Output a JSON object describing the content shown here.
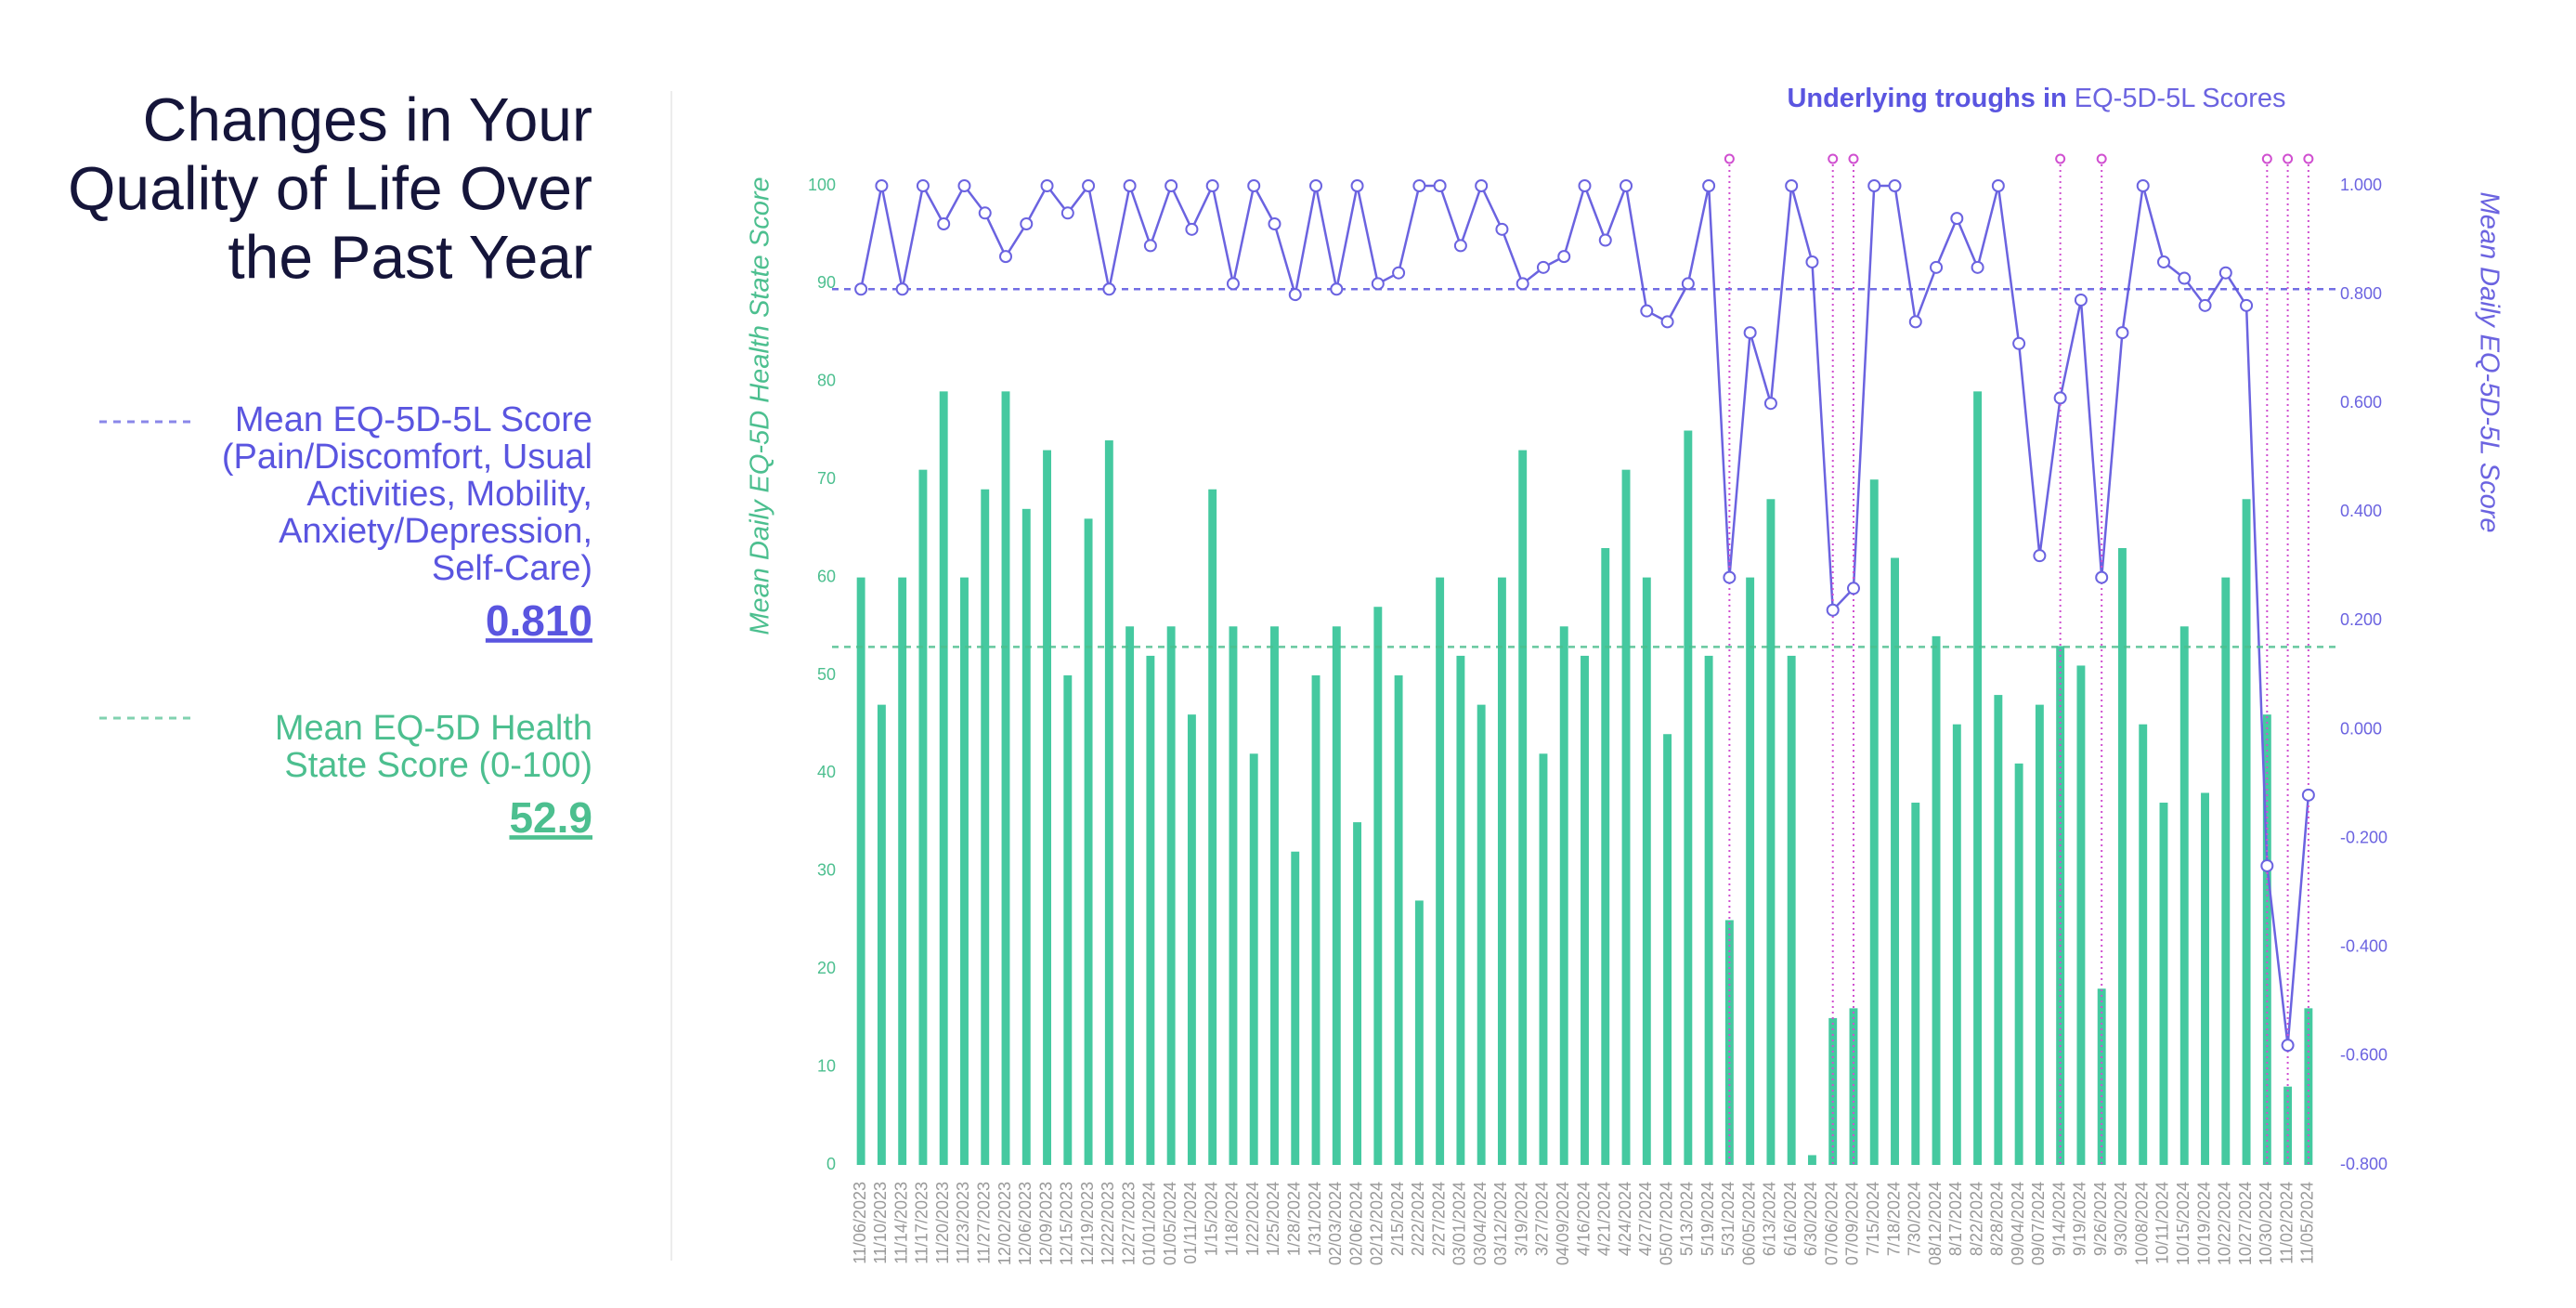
{
  "chart_data": {
    "type": "bar_line",
    "title_lines": [
      "Changes in Your",
      "Quality of Life Over",
      "the Past Year"
    ],
    "chart_title_bold": "Underlying troughs in",
    "chart_title_rest": "EQ-5D-5L Scores",
    "ylabel": "Mean Daily EQ-5D Health State Score",
    "y2label": "Mean Daily EQ-5D-5L Score",
    "reference_lines": [
      {
        "name_lines": [
          "Mean EQ-5D-5L Score",
          "(Pain/Discomfort, Usual",
          "Activities, Mobility,",
          "Anxiety/Depression,",
          "Self-Care)"
        ],
        "color": "#5a55e0",
        "value": 0.81,
        "label": "0.810",
        "axis": "y2"
      },
      {
        "name_lines": [
          "Mean EQ-5D Health",
          "State Score (0-100)"
        ],
        "color": "#4cbf8f",
        "value": 52.9,
        "axis": "y"
      }
    ],
    "categories": [
      "11/06/2023",
      "11/10/2023",
      "11/14/2023",
      "11/17/2023",
      "11/20/2023",
      "11/23/2023",
      "11/27/2023",
      "12/02/2023",
      "12/06/2023",
      "12/09/2023",
      "12/15/2023",
      "12/19/2023",
      "12/22/2023",
      "12/27/2023",
      "01/01/2024",
      "01/05/2024",
      "01/11/2024",
      "1/15/2024",
      "1/18/2024",
      "1/22/2024",
      "1/25/2024",
      "1/28/2024",
      "1/31/2024",
      "02/03/2024",
      "02/06/2024",
      "02/12/2024",
      "2/15/2024",
      "2/22/2024",
      "2/27/2024",
      "03/01/2024",
      "03/04/2024",
      "03/12/2024",
      "3/19/2024",
      "3/27/2024",
      "04/09/2024",
      "4/16/2024",
      "4/21/2024",
      "4/24/2024",
      "4/27/2024",
      "05/07/2024",
      "5/13/2024",
      "5/19/2024",
      "5/31/2024",
      "06/05/2024",
      "6/13/2024",
      "6/16/2024",
      "6/30/2024",
      "07/06/2024",
      "07/09/2024",
      "7/15/2024",
      "7/18/2024",
      "7/30/2024",
      "08/12/2024",
      "8/17/2024",
      "8/22/2024",
      "8/28/2024",
      "09/04/2024",
      "09/07/2024",
      "9/14/2024",
      "9/19/2024",
      "9/26/2024",
      "9/30/2024",
      "10/08/2024",
      "10/11/2024",
      "10/15/2024",
      "10/19/2024",
      "10/22/2024",
      "10/27/2024",
      "10/30/2024",
      "11/02/2024",
      "11/05/2024"
    ],
    "series": [
      {
        "color": "#45c9a0",
        "axis": "y",
        "kind": "bar",
        "values": [
          60,
          47,
          60,
          71,
          79,
          60,
          69,
          79,
          67,
          73,
          50,
          66,
          74,
          55,
          52,
          55,
          46,
          69,
          55,
          42,
          55,
          32,
          50,
          55,
          35,
          57,
          50,
          27,
          60,
          52,
          47,
          60,
          73,
          42,
          55,
          52,
          63,
          71,
          60,
          44,
          75,
          52,
          25,
          60,
          68,
          52,
          1,
          15,
          16,
          70,
          62,
          37,
          54,
          45,
          79,
          48,
          41,
          47,
          53,
          51,
          18,
          63,
          45,
          37,
          55,
          38,
          60,
          68,
          46,
          8,
          16
        ]
      },
      {
        "color": "#6b63e0",
        "axis": "y2",
        "kind": "line",
        "values": [
          0.81,
          1.0,
          0.81,
          1.0,
          0.93,
          1.0,
          0.95,
          0.87,
          0.93,
          1.0,
          0.95,
          1.0,
          0.81,
          1.0,
          0.89,
          1.0,
          0.92,
          1.0,
          0.82,
          1.0,
          0.93,
          0.8,
          1.0,
          0.81,
          1.0,
          0.82,
          0.84,
          1.0,
          1.0,
          0.89,
          1.0,
          0.92,
          0.82,
          0.85,
          0.87,
          1.0,
          0.9,
          1.0,
          0.77,
          0.75,
          0.82,
          1.0,
          0.28,
          0.73,
          0.6,
          1.0,
          0.86,
          0.22,
          0.26,
          1.0,
          1.0,
          0.75,
          0.85,
          0.94,
          0.85,
          1.0,
          0.71,
          0.32,
          0.61,
          0.79,
          0.28,
          0.73,
          1.0,
          0.86,
          0.83,
          0.78,
          0.84,
          0.78,
          -0.25,
          -0.58,
          -0.12
        ]
      }
    ],
    "troughs": [
      "5/31/2024",
      "07/06/2024",
      "07/09/2024",
      "9/14/2024",
      "9/26/2024",
      "10/30/2024",
      "11/02/2024",
      "11/05/2024"
    ],
    "trough_color": "#d04fd0",
    "ylim": [
      0,
      100
    ],
    "yticks": [
      0,
      10,
      20,
      30,
      40,
      50,
      60,
      70,
      80,
      90,
      100
    ],
    "y2lim": [
      -0.8,
      1.0
    ],
    "y2ticks": [
      {
        "value": -0.8,
        "label": "-0.800"
      },
      {
        "value": -0.6,
        "label": "-0.600"
      },
      {
        "value": -0.4,
        "label": "-0.400"
      },
      {
        "value": -0.2,
        "label": "-0.200"
      },
      {
        "value": 0,
        "label": "0.000"
      },
      {
        "value": 0.2,
        "label": "0.200"
      },
      {
        "value": 0.4,
        "label": "0.400"
      },
      {
        "value": 0.6,
        "label": "0.600"
      },
      {
        "value": 0.8,
        "label": "0.800"
      },
      {
        "value": 1.0,
        "label": "1.000"
      }
    ],
    "ycolor": "#4cbf8f",
    "y2color": "#6b63e0",
    "grid": false
  }
}
